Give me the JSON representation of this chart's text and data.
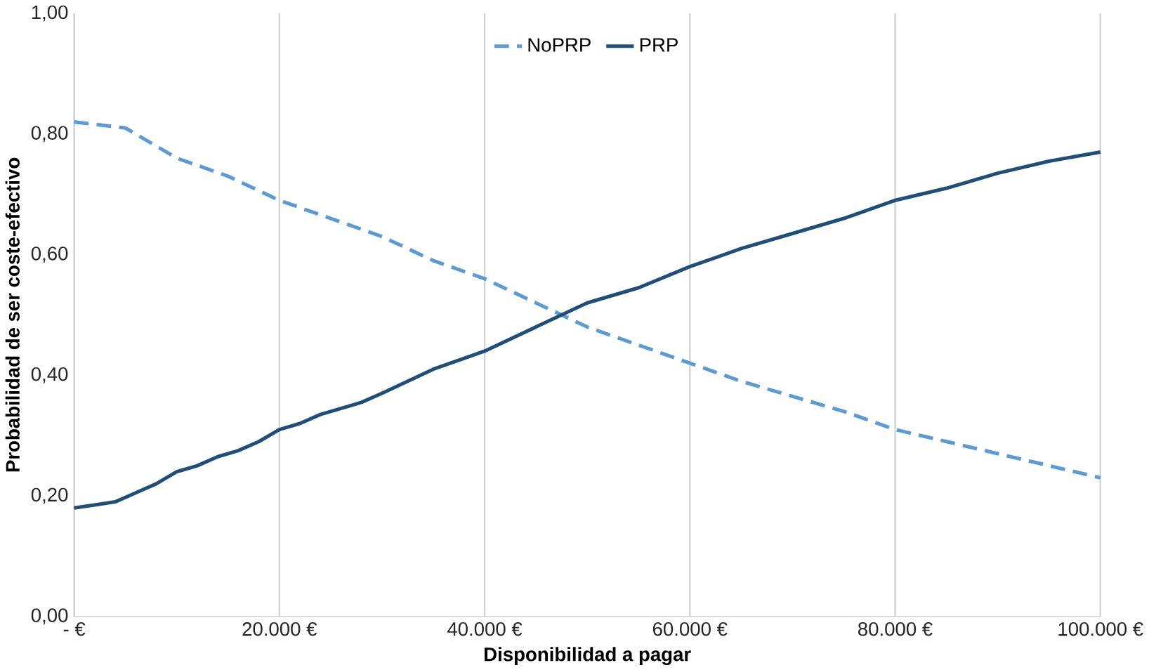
{
  "chart_data": {
    "type": "line",
    "xlabel": "Disponibilidad a pagar",
    "ylabel": "Probabilidad de ser coste-efectivo",
    "xlim": [
      0,
      100000
    ],
    "ylim": [
      0,
      1
    ],
    "xticks": [
      {
        "value": 0,
        "label": "-   €"
      },
      {
        "value": 20000,
        "label": "20.000 €"
      },
      {
        "value": 40000,
        "label": "40.000 €"
      },
      {
        "value": 60000,
        "label": "60.000 €"
      },
      {
        "value": 80000,
        "label": "80.000 €"
      },
      {
        "value": 100000,
        "label": "100.000 €"
      }
    ],
    "yticks": [
      {
        "value": 0,
        "label": "0,00"
      },
      {
        "value": 0.2,
        "label": "0,20"
      },
      {
        "value": 0.4,
        "label": "0,40"
      },
      {
        "value": 0.6,
        "label": "0,60"
      },
      {
        "value": 0.8,
        "label": "0,80"
      },
      {
        "value": 1,
        "label": "1,00"
      }
    ],
    "grid": "x",
    "legend": "top",
    "marker": "none",
    "series": [
      {
        "name": "NoPRP",
        "color": "#5b9bd5",
        "line_style": "dashed",
        "x": [
          0,
          5000,
          10000,
          15000,
          20000,
          25000,
          30000,
          35000,
          40000,
          45000,
          50000,
          55000,
          60000,
          65000,
          70000,
          75000,
          80000,
          85000,
          90000,
          95000,
          100000
        ],
        "values": [
          0.82,
          0.81,
          0.76,
          0.73,
          0.69,
          0.66,
          0.63,
          0.59,
          0.56,
          0.52,
          0.48,
          0.45,
          0.42,
          0.39,
          0.365,
          0.34,
          0.31,
          0.29,
          0.27,
          0.25,
          0.23
        ]
      },
      {
        "name": "PRP",
        "color": "#1f4e79",
        "line_style": "solid",
        "x": [
          0,
          2000,
          4000,
          6000,
          8000,
          10000,
          12000,
          14000,
          16000,
          18000,
          20000,
          22000,
          24000,
          26000,
          28000,
          30000,
          35000,
          40000,
          45000,
          50000,
          55000,
          60000,
          65000,
          70000,
          75000,
          80000,
          85000,
          90000,
          95000,
          100000
        ],
        "values": [
          0.18,
          0.185,
          0.19,
          0.205,
          0.22,
          0.24,
          0.25,
          0.265,
          0.275,
          0.29,
          0.31,
          0.32,
          0.335,
          0.345,
          0.355,
          0.37,
          0.41,
          0.44,
          0.48,
          0.52,
          0.545,
          0.58,
          0.61,
          0.635,
          0.66,
          0.69,
          0.71,
          0.735,
          0.755,
          0.77
        ]
      }
    ]
  }
}
